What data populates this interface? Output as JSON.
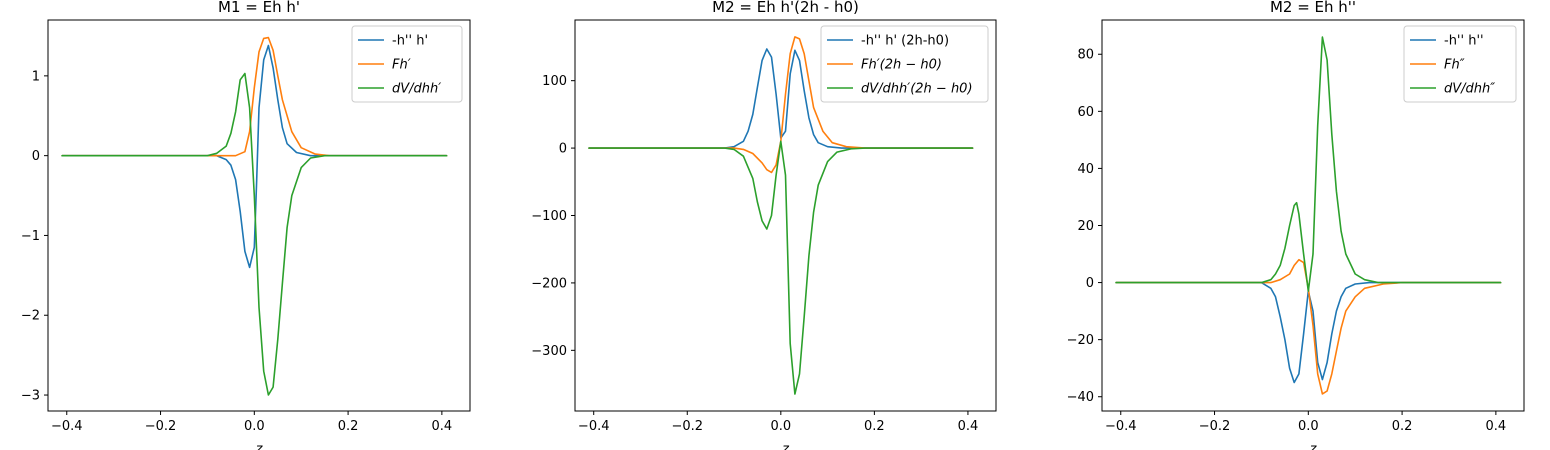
{
  "figure": {
    "background": "#ffffff"
  },
  "chart_data": [
    {
      "type": "line",
      "title": "M1 = Eh h'",
      "xlabel": "z",
      "ylabel": "",
      "xlim": [
        -0.44,
        0.46
      ],
      "ylim": [
        -3.2,
        1.7
      ],
      "xticks": [
        -0.4,
        -0.2,
        0.0,
        0.2,
        0.4
      ],
      "xtick_labels": [
        "−0.4",
        "−0.2",
        "0.0",
        "0.2",
        "0.4"
      ],
      "yticks": [
        -3,
        -2,
        -1,
        0,
        1
      ],
      "ytick_labels": [
        "−3",
        "−2",
        "−1",
        "0",
        "1"
      ],
      "grid": false,
      "legend": "top-right",
      "series": [
        {
          "name": "-h'' h'",
          "color": "#1f77b4",
          "points": [
            [
              -0.41,
              0
            ],
            [
              -0.08,
              0
            ],
            [
              -0.06,
              -0.05
            ],
            [
              -0.05,
              -0.12
            ],
            [
              -0.04,
              -0.3
            ],
            [
              -0.03,
              -0.7
            ],
            [
              -0.02,
              -1.2
            ],
            [
              -0.01,
              -1.4
            ],
            [
              0.0,
              -1.15
            ],
            [
              0.005,
              -0.3
            ],
            [
              0.01,
              0.6
            ],
            [
              0.02,
              1.2
            ],
            [
              0.03,
              1.38
            ],
            [
              0.04,
              1.1
            ],
            [
              0.05,
              0.7
            ],
            [
              0.06,
              0.35
            ],
            [
              0.07,
              0.15
            ],
            [
              0.09,
              0.04
            ],
            [
              0.12,
              0
            ],
            [
              0.41,
              0
            ]
          ]
        },
        {
          "name": "Fh′",
          "color": "#ff7f0e",
          "points": [
            [
              -0.41,
              0
            ],
            [
              -0.04,
              0
            ],
            [
              -0.02,
              0.05
            ],
            [
              -0.01,
              0.3
            ],
            [
              0.0,
              0.85
            ],
            [
              0.01,
              1.3
            ],
            [
              0.02,
              1.47
            ],
            [
              0.03,
              1.48
            ],
            [
              0.04,
              1.32
            ],
            [
              0.05,
              1.0
            ],
            [
              0.06,
              0.7
            ],
            [
              0.08,
              0.3
            ],
            [
              0.1,
              0.1
            ],
            [
              0.13,
              0.02
            ],
            [
              0.16,
              0
            ],
            [
              0.41,
              0
            ]
          ]
        },
        {
          "name": "dV/dhh′",
          "color": "#2ca02c",
          "points": [
            [
              -0.41,
              0
            ],
            [
              -0.1,
              0
            ],
            [
              -0.08,
              0.03
            ],
            [
              -0.06,
              0.12
            ],
            [
              -0.05,
              0.28
            ],
            [
              -0.04,
              0.55
            ],
            [
              -0.03,
              0.95
            ],
            [
              -0.02,
              1.03
            ],
            [
              -0.01,
              0.6
            ],
            [
              0.0,
              -0.5
            ],
            [
              0.01,
              -1.9
            ],
            [
              0.02,
              -2.7
            ],
            [
              0.03,
              -3.0
            ],
            [
              0.04,
              -2.9
            ],
            [
              0.05,
              -2.3
            ],
            [
              0.06,
              -1.6
            ],
            [
              0.07,
              -0.9
            ],
            [
              0.08,
              -0.5
            ],
            [
              0.1,
              -0.15
            ],
            [
              0.12,
              -0.03
            ],
            [
              0.15,
              0
            ],
            [
              0.41,
              0
            ]
          ]
        }
      ]
    },
    {
      "type": "line",
      "title": "M2 = Eh h'(2h - h0)",
      "xlabel": "z",
      "ylabel": "",
      "xlim": [
        -0.44,
        0.46
      ],
      "ylim": [
        -390,
        190
      ],
      "xticks": [
        -0.4,
        -0.2,
        0.0,
        0.2,
        0.4
      ],
      "xtick_labels": [
        "−0.4",
        "−0.2",
        "0.0",
        "0.2",
        "0.4"
      ],
      "yticks": [
        -300,
        -200,
        -100,
        0,
        100
      ],
      "ytick_labels": [
        "−300",
        "−200",
        "−100",
        "0",
        "100"
      ],
      "grid": false,
      "legend": "top-right",
      "series": [
        {
          "name": "-h'' h' (2h-h0)",
          "color": "#1f77b4",
          "points": [
            [
              -0.41,
              0
            ],
            [
              -0.12,
              0
            ],
            [
              -0.1,
              2
            ],
            [
              -0.08,
              10
            ],
            [
              -0.07,
              25
            ],
            [
              -0.06,
              50
            ],
            [
              -0.05,
              90
            ],
            [
              -0.04,
              130
            ],
            [
              -0.03,
              147
            ],
            [
              -0.02,
              135
            ],
            [
              -0.01,
              80
            ],
            [
              0.0,
              15
            ],
            [
              0.01,
              25
            ],
            [
              0.02,
              110
            ],
            [
              0.03,
              145
            ],
            [
              0.04,
              130
            ],
            [
              0.05,
              85
            ],
            [
              0.06,
              45
            ],
            [
              0.07,
              20
            ],
            [
              0.08,
              8
            ],
            [
              0.1,
              2
            ],
            [
              0.13,
              0
            ],
            [
              0.41,
              0
            ]
          ]
        },
        {
          "name": "Fh′(2h − h0)",
          "color": "#ff7f0e",
          "points": [
            [
              -0.41,
              0
            ],
            [
              -0.1,
              0
            ],
            [
              -0.08,
              -2
            ],
            [
              -0.06,
              -8
            ],
            [
              -0.04,
              -22
            ],
            [
              -0.03,
              -32
            ],
            [
              -0.02,
              -36
            ],
            [
              -0.01,
              -25
            ],
            [
              0.0,
              10
            ],
            [
              0.01,
              80
            ],
            [
              0.02,
              140
            ],
            [
              0.03,
              165
            ],
            [
              0.04,
              162
            ],
            [
              0.05,
              140
            ],
            [
              0.06,
              100
            ],
            [
              0.07,
              60
            ],
            [
              0.09,
              25
            ],
            [
              0.11,
              8
            ],
            [
              0.14,
              2
            ],
            [
              0.18,
              0
            ],
            [
              0.41,
              0
            ]
          ]
        },
        {
          "name": "dV/dhh′(2h − h0)",
          "color": "#2ca02c",
          "points": [
            [
              -0.41,
              0
            ],
            [
              -0.12,
              0
            ],
            [
              -0.1,
              -2
            ],
            [
              -0.08,
              -12
            ],
            [
              -0.06,
              -45
            ],
            [
              -0.05,
              -80
            ],
            [
              -0.04,
              -108
            ],
            [
              -0.03,
              -120
            ],
            [
              -0.02,
              -100
            ],
            [
              -0.01,
              -40
            ],
            [
              0.0,
              10
            ],
            [
              0.01,
              -40
            ],
            [
              0.02,
              -290
            ],
            [
              0.03,
              -365
            ],
            [
              0.04,
              -335
            ],
            [
              0.05,
              -250
            ],
            [
              0.06,
              -160
            ],
            [
              0.07,
              -95
            ],
            [
              0.08,
              -55
            ],
            [
              0.1,
              -20
            ],
            [
              0.12,
              -6
            ],
            [
              0.15,
              -1
            ],
            [
              0.18,
              0
            ],
            [
              0.41,
              0
            ]
          ]
        }
      ]
    },
    {
      "type": "line",
      "title": "M2 = Eh h''",
      "xlabel": "z",
      "ylabel": "",
      "xlim": [
        -0.44,
        0.46
      ],
      "ylim": [
        -45,
        92
      ],
      "xticks": [
        -0.4,
        -0.2,
        0.0,
        0.2,
        0.4
      ],
      "xtick_labels": [
        "−0.4",
        "−0.2",
        "0.0",
        "0.2",
        "0.4"
      ],
      "yticks": [
        -40,
        -20,
        0,
        20,
        40,
        60,
        80
      ],
      "ytick_labels": [
        "−40",
        "−20",
        "0",
        "20",
        "40",
        "60",
        "80"
      ],
      "grid": false,
      "legend": "top-right",
      "series": [
        {
          "name": "-h'' h''",
          "color": "#1f77b4",
          "points": [
            [
              -0.41,
              0
            ],
            [
              -0.1,
              0
            ],
            [
              -0.08,
              -2
            ],
            [
              -0.07,
              -5
            ],
            [
              -0.06,
              -12
            ],
            [
              -0.05,
              -20
            ],
            [
              -0.04,
              -30
            ],
            [
              -0.03,
              -35
            ],
            [
              -0.02,
              -32
            ],
            [
              -0.01,
              -18
            ],
            [
              0.0,
              -3
            ],
            [
              0.01,
              -10
            ],
            [
              0.02,
              -28
            ],
            [
              0.03,
              -34
            ],
            [
              0.04,
              -28
            ],
            [
              0.05,
              -18
            ],
            [
              0.06,
              -10
            ],
            [
              0.07,
              -5
            ],
            [
              0.08,
              -2
            ],
            [
              0.1,
              -0.5
            ],
            [
              0.13,
              0
            ],
            [
              0.41,
              0
            ]
          ]
        },
        {
          "name": "Fh″",
          "color": "#ff7f0e",
          "points": [
            [
              -0.41,
              0
            ],
            [
              -0.08,
              0
            ],
            [
              -0.06,
              1
            ],
            [
              -0.04,
              3
            ],
            [
              -0.03,
              6
            ],
            [
              -0.02,
              8
            ],
            [
              -0.01,
              7
            ],
            [
              0.0,
              -2
            ],
            [
              0.01,
              -15
            ],
            [
              0.02,
              -32
            ],
            [
              0.03,
              -39
            ],
            [
              0.04,
              -38
            ],
            [
              0.05,
              -32
            ],
            [
              0.06,
              -24
            ],
            [
              0.07,
              -16
            ],
            [
              0.08,
              -10
            ],
            [
              0.1,
              -5
            ],
            [
              0.12,
              -2
            ],
            [
              0.16,
              -0.5
            ],
            [
              0.2,
              0
            ],
            [
              0.41,
              0
            ]
          ]
        },
        {
          "name": "dV/dhh″",
          "color": "#2ca02c",
          "points": [
            [
              -0.41,
              0
            ],
            [
              -0.1,
              0
            ],
            [
              -0.08,
              1
            ],
            [
              -0.07,
              3
            ],
            [
              -0.06,
              6
            ],
            [
              -0.05,
              12
            ],
            [
              -0.04,
              20
            ],
            [
              -0.03,
              27
            ],
            [
              -0.025,
              28
            ],
            [
              -0.02,
              24
            ],
            [
              -0.01,
              10
            ],
            [
              0.0,
              -3
            ],
            [
              0.01,
              10
            ],
            [
              0.02,
              55
            ],
            [
              0.03,
              86
            ],
            [
              0.04,
              78
            ],
            [
              0.05,
              52
            ],
            [
              0.06,
              32
            ],
            [
              0.07,
              18
            ],
            [
              0.08,
              10
            ],
            [
              0.1,
              3
            ],
            [
              0.12,
              1
            ],
            [
              0.15,
              0
            ],
            [
              0.41,
              0
            ]
          ]
        }
      ]
    }
  ]
}
